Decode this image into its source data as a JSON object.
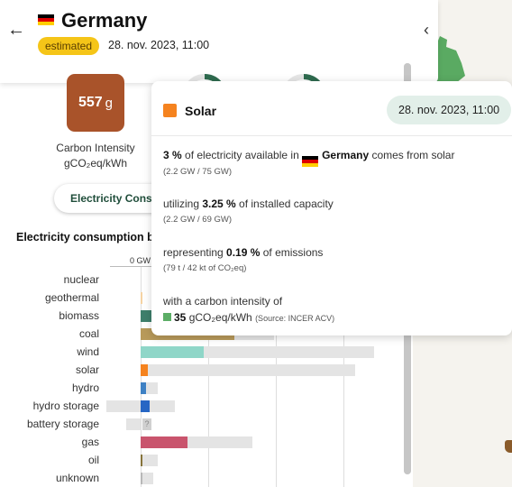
{
  "header": {
    "title": "Germany",
    "badge": "estimated",
    "timestamp": "28. nov. 2023, 11:00"
  },
  "carbon_intensity": {
    "value": "557",
    "unit": "g",
    "label_line1": "Carbon Intensity",
    "label_line2": "gCO₂eq/kWh"
  },
  "toggle": {
    "label": "Electricity Consumption"
  },
  "section": {
    "title": "Electricity consumption by source",
    "axis_label": "0 GW"
  },
  "chart_data": {
    "type": "bar",
    "categories": [
      "nuclear",
      "geothermal",
      "biomass",
      "coal",
      "wind",
      "solar",
      "hydro",
      "hydro storage",
      "battery storage",
      "gas",
      "oil",
      "unknown"
    ],
    "series": [
      {
        "values": [
          0,
          0.1,
          4.4,
          30.0,
          20.3,
          2.2,
          1.8,
          2.8,
          0,
          15.1,
          0.4,
          0.1
        ]
      },
      {
        "values": [
          0,
          0.1,
          8.5,
          43.0,
          75.0,
          69.0,
          5.5,
          11.0,
          0,
          36.0,
          5.5,
          4.0
        ]
      }
    ],
    "negative_capacity": {
      "hydro storage": 11.0,
      "battery storage": 4.5
    },
    "unknown_marker": {
      "battery storage": "?"
    },
    "colors": {
      "nuclear": "#a9b1c7",
      "geothermal": "#f5d3a3",
      "biomass": "#3e7f6c",
      "coal": "#b89a5a",
      "wind": "#8fd6c8",
      "solar": "#f5831f",
      "hydro": "#3f81c4",
      "hydro storage": "#2766c4",
      "battery storage": "#bdbdbd",
      "gas": "#c9546d",
      "oil": "#86743a",
      "unknown": "#b8b8b8"
    }
  },
  "tooltip": {
    "mode": "Solar",
    "time": "28. nov. 2023, 11:00",
    "line1_pct": "3 %",
    "line1_text": " of electricity available in ",
    "line1_zone": "Germany",
    "line1_end": " comes from solar",
    "line1_sub": "(2.2 GW / 75 GW)",
    "line2_text": "utilizing ",
    "line2_pct": "3.25 %",
    "line2_end": " of installed capacity",
    "line2_sub": "(2.2 GW / 69 GW)",
    "line3_text": "representing ",
    "line3_pct": "0.19 %",
    "line3_end": " of emissions",
    "line3_sub": "(79 t / 42 kt of CO₂eq)",
    "line4_text": "with a carbon intensity of",
    "line4_value": "35",
    "line4_unit": " gCO₂eq/kWh",
    "line4_source": "(Source: INCER ACV)"
  }
}
